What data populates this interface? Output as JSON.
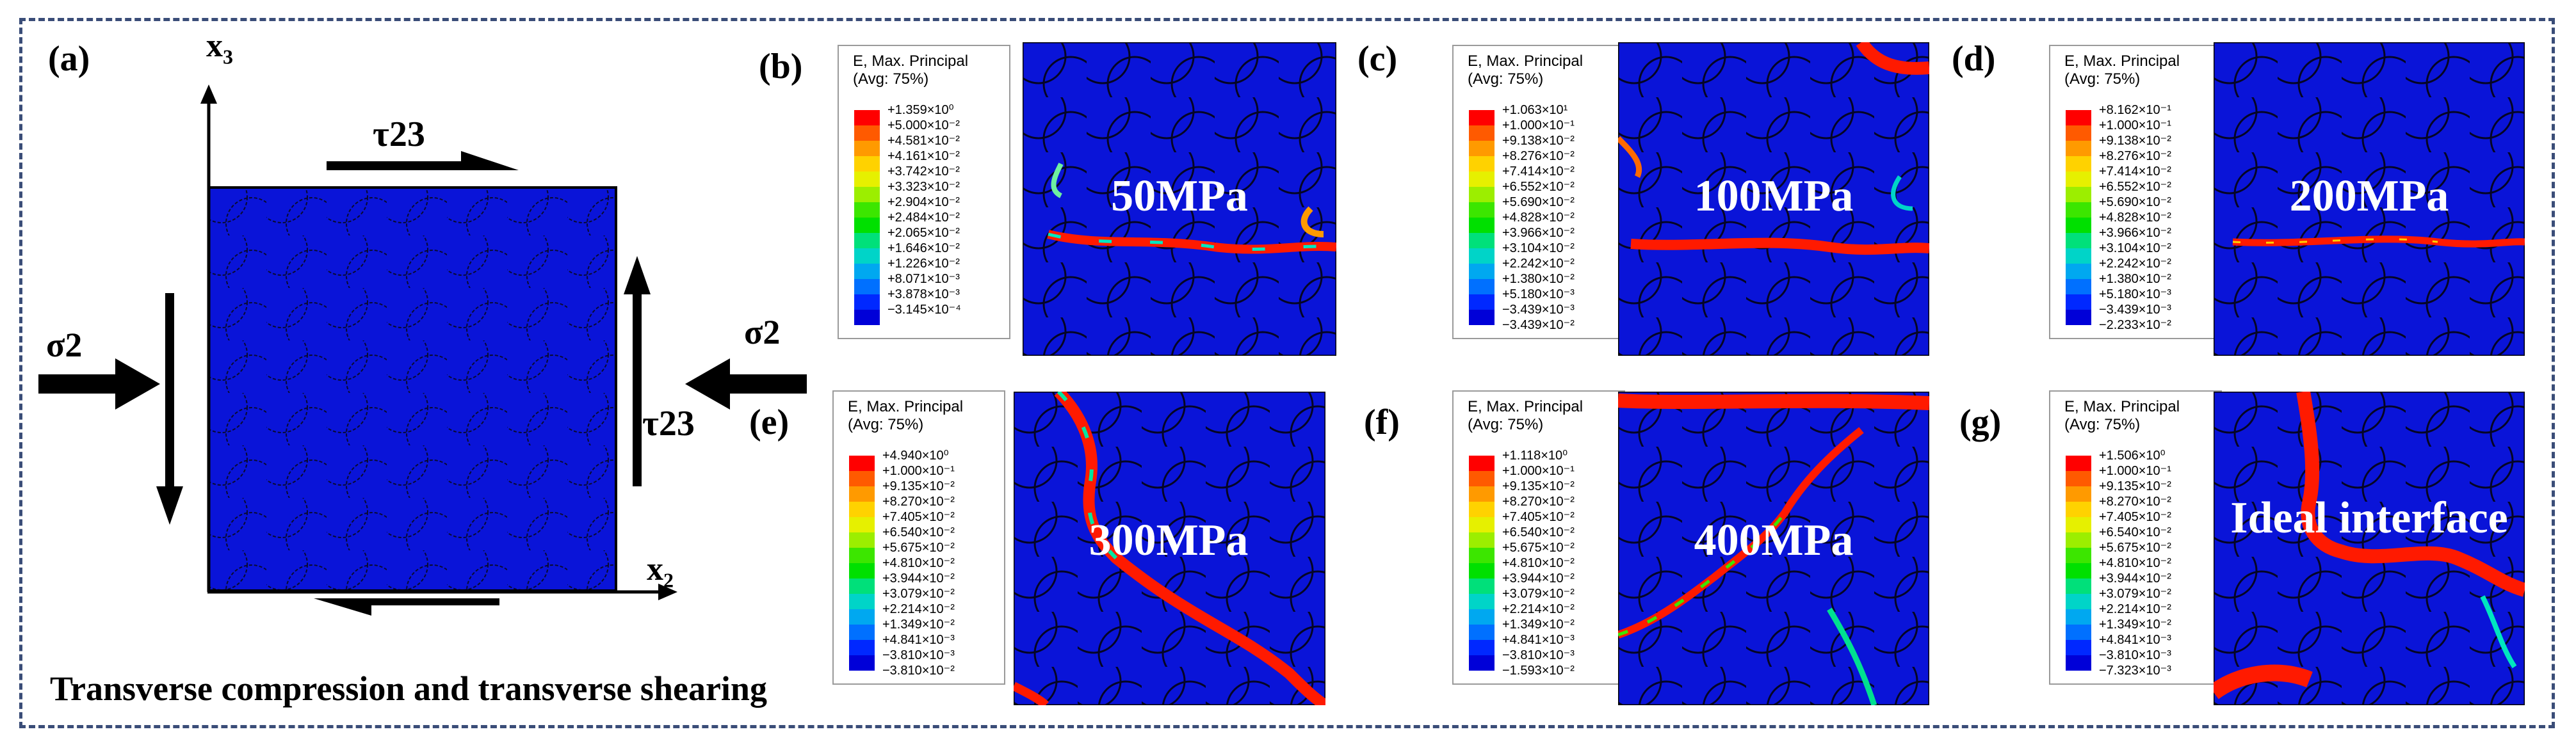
{
  "figure": {
    "caption": "Transverse  compression and transverse shearing",
    "panel_a": {
      "label": "(a)",
      "axis_x": "x",
      "axis_x_sub": "2",
      "axis_y": "x",
      "axis_y_sub": "3",
      "load_top": "τ23",
      "load_right": "τ23",
      "load_left_sigma": "σ2",
      "load_right_sigma": "σ2"
    },
    "legend_common": {
      "title": "E, Max. Principal",
      "subtitle": "(Avg: 75%)"
    },
    "panels": [
      {
        "id": "b",
        "label": "(b)",
        "pressure": "50MPa",
        "values": [
          "+1.359×10⁰",
          "+5.000×10⁻²",
          "+4.581×10⁻²",
          "+4.161×10⁻²",
          "+3.742×10⁻²",
          "+3.323×10⁻²",
          "+2.904×10⁻²",
          "+2.484×10⁻²",
          "+2.065×10⁻²",
          "+1.646×10⁻²",
          "+1.226×10⁻²",
          "+8.071×10⁻³",
          "+3.878×10⁻³",
          "−3.145×10⁻⁴"
        ]
      },
      {
        "id": "c",
        "label": "(c)",
        "pressure": "100MPa",
        "values": [
          "+1.063×10¹",
          "+1.000×10⁻¹",
          "+9.138×10⁻²",
          "+8.276×10⁻²",
          "+7.414×10⁻²",
          "+6.552×10⁻²",
          "+5.690×10⁻²",
          "+4.828×10⁻²",
          "+3.966×10⁻²",
          "+3.104×10⁻²",
          "+2.242×10⁻²",
          "+1.380×10⁻²",
          "+5.180×10⁻³",
          "−3.439×10⁻³",
          "−3.439×10⁻²"
        ]
      },
      {
        "id": "d",
        "label": "(d)",
        "pressure": "200MPa",
        "values": [
          "+8.162×10⁻¹",
          "+1.000×10⁻¹",
          "+9.138×10⁻²",
          "+8.276×10⁻²",
          "+7.414×10⁻²",
          "+6.552×10⁻²",
          "+5.690×10⁻²",
          "+4.828×10⁻²",
          "+3.966×10⁻²",
          "+3.104×10⁻²",
          "+2.242×10⁻²",
          "+1.380×10⁻²",
          "+5.180×10⁻³",
          "−3.439×10⁻³",
          "−2.233×10⁻²"
        ]
      },
      {
        "id": "e",
        "label": "(e)",
        "pressure": "300MPa",
        "values": [
          "+4.940×10⁰",
          "+1.000×10⁻¹",
          "+9.135×10⁻²",
          "+8.270×10⁻²",
          "+7.405×10⁻²",
          "+6.540×10⁻²",
          "+5.675×10⁻²",
          "+4.810×10⁻²",
          "+3.944×10⁻²",
          "+3.079×10⁻²",
          "+2.214×10⁻²",
          "+1.349×10⁻²",
          "+4.841×10⁻³",
          "−3.810×10⁻³",
          "−3.810×10⁻²"
        ]
      },
      {
        "id": "f",
        "label": "(f)",
        "pressure": "400MPa",
        "values": [
          "+1.118×10⁰",
          "+1.000×10⁻¹",
          "+9.135×10⁻²",
          "+8.270×10⁻²",
          "+7.405×10⁻²",
          "+6.540×10⁻²",
          "+5.675×10⁻²",
          "+4.810×10⁻²",
          "+3.944×10⁻²",
          "+3.079×10⁻²",
          "+2.214×10⁻²",
          "+1.349×10⁻²",
          "+4.841×10⁻³",
          "−3.810×10⁻³",
          "−1.593×10⁻²"
        ]
      },
      {
        "id": "g",
        "label": "(g)",
        "pressure": "Ideal interface",
        "values": [
          "+1.506×10⁰",
          "+1.000×10⁻¹",
          "+9.135×10⁻²",
          "+8.270×10⁻²",
          "+7.405×10⁻²",
          "+6.540×10⁻²",
          "+5.675×10⁻²",
          "+4.810×10⁻²",
          "+3.944×10⁻²",
          "+3.079×10⁻²",
          "+2.214×10⁻²",
          "+1.349×10⁻²",
          "+4.841×10⁻³",
          "−3.810×10⁻³",
          "−7.323×10⁻³"
        ]
      }
    ],
    "colormap": [
      "#ff0000",
      "#ff5a00",
      "#ff9a00",
      "#ffd200",
      "#e6f000",
      "#9cee00",
      "#3ce600",
      "#00e000",
      "#00e07a",
      "#00d4c8",
      "#00a8f0",
      "#0070ff",
      "#0028ff",
      "#0000d8"
    ]
  }
}
